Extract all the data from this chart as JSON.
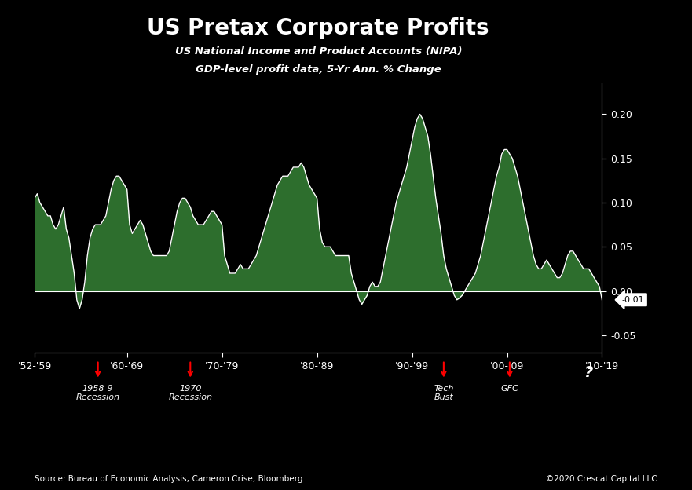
{
  "title": "US Pretax Corporate Profits",
  "subtitle1": "US National Income and Product Accounts (NIPA)",
  "subtitle2": "GDP-level profit data, 5-Yr Ann. % Change",
  "background_color": "#000000",
  "plot_bg_color": "#000000",
  "line_color": "#ffffff",
  "fill_color": "#2d6e2d",
  "title_color": "#ffffff",
  "subtitle_color": "#ffffff",
  "tick_color": "#ffffff",
  "axis_color": "#ffffff",
  "source_text": "Source: Bureau of Economic Analysis; Cameron Crise; Bloomberg",
  "copyright_text": "©2020 Crescat Capital LLC",
  "current_value_label": "-0.01",
  "ylim": [
    -0.07,
    0.235
  ],
  "yticks": [
    -0.05,
    0.0,
    0.05,
    0.1,
    0.15,
    0.2
  ],
  "xtick_labels": [
    "'52-'59",
    "'60-'69",
    "'70-'79",
    "'80-'89",
    "'90-'99",
    "'00-'09",
    "'10-'19"
  ],
  "values": [
    0.105,
    0.11,
    0.1,
    0.095,
    0.09,
    0.085,
    0.085,
    0.075,
    0.07,
    0.075,
    0.085,
    0.095,
    0.07,
    0.06,
    0.04,
    0.02,
    -0.01,
    -0.02,
    -0.01,
    0.01,
    0.04,
    0.06,
    0.07,
    0.075,
    0.075,
    0.075,
    0.08,
    0.085,
    0.1,
    0.115,
    0.125,
    0.13,
    0.13,
    0.125,
    0.12,
    0.115,
    0.075,
    0.065,
    0.07,
    0.075,
    0.08,
    0.075,
    0.065,
    0.055,
    0.045,
    0.04,
    0.04,
    0.04,
    0.04,
    0.04,
    0.04,
    0.045,
    0.06,
    0.075,
    0.09,
    0.1,
    0.105,
    0.105,
    0.1,
    0.095,
    0.085,
    0.08,
    0.075,
    0.075,
    0.075,
    0.08,
    0.085,
    0.09,
    0.09,
    0.085,
    0.08,
    0.075,
    0.04,
    0.03,
    0.02,
    0.02,
    0.02,
    0.025,
    0.03,
    0.025,
    0.025,
    0.025,
    0.03,
    0.035,
    0.04,
    0.05,
    0.06,
    0.07,
    0.08,
    0.09,
    0.1,
    0.11,
    0.12,
    0.125,
    0.13,
    0.13,
    0.13,
    0.135,
    0.14,
    0.14,
    0.14,
    0.145,
    0.14,
    0.13,
    0.12,
    0.115,
    0.11,
    0.105,
    0.07,
    0.055,
    0.05,
    0.05,
    0.05,
    0.045,
    0.04,
    0.04,
    0.04,
    0.04,
    0.04,
    0.04,
    0.02,
    0.01,
    0.0,
    -0.01,
    -0.015,
    -0.01,
    -0.005,
    0.005,
    0.01,
    0.005,
    0.005,
    0.01,
    0.025,
    0.04,
    0.055,
    0.07,
    0.085,
    0.1,
    0.11,
    0.12,
    0.13,
    0.14,
    0.155,
    0.17,
    0.185,
    0.195,
    0.2,
    0.195,
    0.185,
    0.175,
    0.155,
    0.13,
    0.105,
    0.085,
    0.065,
    0.04,
    0.025,
    0.015,
    0.005,
    -0.005,
    -0.01,
    -0.008,
    -0.005,
    0.0,
    0.005,
    0.01,
    0.015,
    0.02,
    0.03,
    0.04,
    0.055,
    0.07,
    0.085,
    0.1,
    0.115,
    0.13,
    0.14,
    0.155,
    0.16,
    0.16,
    0.155,
    0.15,
    0.14,
    0.13,
    0.115,
    0.1,
    0.085,
    0.07,
    0.055,
    0.04,
    0.03,
    0.025,
    0.025,
    0.03,
    0.035,
    0.03,
    0.025,
    0.02,
    0.015,
    0.015,
    0.02,
    0.03,
    0.04,
    0.045,
    0.045,
    0.04,
    0.035,
    0.03,
    0.025,
    0.025,
    0.025,
    0.02,
    0.015,
    0.01,
    0.005,
    -0.01
  ]
}
